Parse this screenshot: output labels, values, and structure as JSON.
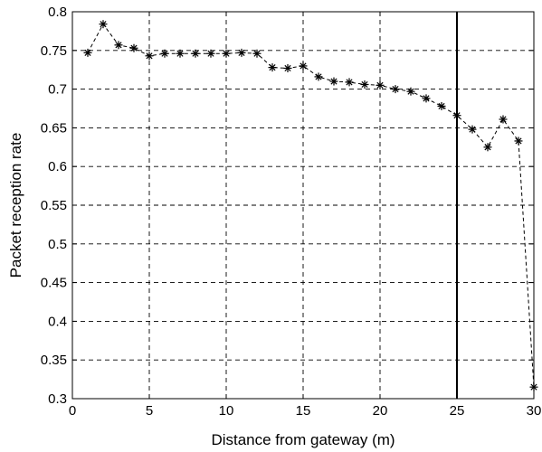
{
  "chart_data": {
    "type": "line",
    "title": "",
    "xlabel": "Distance from gateway (m)",
    "ylabel": "Packet reception rate",
    "xlim": [
      0,
      30
    ],
    "ylim": [
      0.3,
      0.8
    ],
    "xticks": [
      0,
      5,
      10,
      15,
      20,
      25,
      30
    ],
    "yticks": [
      0.3,
      0.35,
      0.4,
      0.45,
      0.5,
      0.55,
      0.6,
      0.65,
      0.7,
      0.75,
      0.8
    ],
    "grid": true,
    "marker": "asterisk",
    "line_style": "dashed",
    "color": "#000000",
    "vertical_line_x": 25,
    "series": [
      {
        "x": [
          1,
          2,
          3,
          4,
          5,
          6,
          7,
          8,
          9,
          10,
          11,
          12,
          13,
          14,
          15,
          16,
          17,
          18,
          19,
          20,
          21,
          22,
          23,
          24,
          25,
          26,
          27,
          28,
          29,
          30
        ],
        "values": [
          0.747,
          0.784,
          0.757,
          0.753,
          0.743,
          0.746,
          0.746,
          0.746,
          0.746,
          0.746,
          0.747,
          0.746,
          0.728,
          0.727,
          0.73,
          0.716,
          0.71,
          0.709,
          0.706,
          0.705,
          0.7,
          0.697,
          0.688,
          0.678,
          0.666,
          0.648,
          0.625,
          0.661,
          0.633,
          0.315
        ]
      }
    ]
  }
}
